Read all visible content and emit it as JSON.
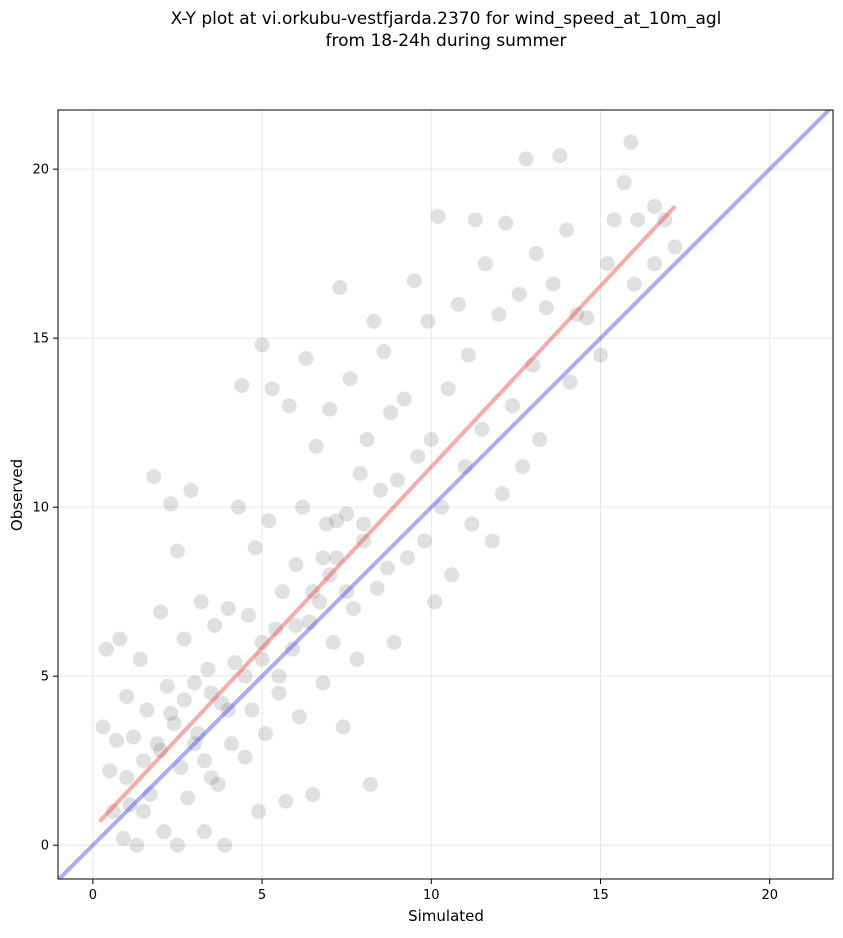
{
  "chart_data": {
    "type": "scatter",
    "title": [
      "X-Y plot at vi.orkubu-vestfjarda.2370 for wind_speed_at_10m_agl",
      "from 18-24h during summer"
    ],
    "xlabel": "Simulated",
    "ylabel": "Observed",
    "xlim": [
      -1.03,
      21.87
    ],
    "ylim": [
      -1.0,
      21.75
    ],
    "xticks": [
      0,
      5,
      10,
      15,
      20
    ],
    "yticks": [
      0,
      5,
      10,
      15,
      20
    ],
    "grid": true,
    "points": {
      "color": "#555555",
      "x": [
        0.3,
        0.4,
        0.5,
        0.6,
        0.7,
        0.8,
        0.9,
        1.0,
        1.0,
        1.1,
        1.2,
        1.3,
        1.4,
        1.5,
        1.6,
        1.7,
        1.8,
        1.9,
        2.0,
        2.1,
        2.2,
        2.3,
        2.4,
        2.5,
        2.5,
        2.6,
        2.7,
        2.8,
        2.9,
        3.0,
        3.1,
        3.2,
        3.3,
        3.4,
        3.5,
        3.6,
        3.7,
        3.8,
        3.9,
        4.0,
        4.1,
        4.2,
        4.3,
        4.4,
        4.5,
        4.6,
        4.7,
        4.8,
        4.9,
        5.0,
        5.0,
        5.1,
        5.2,
        5.3,
        5.4,
        5.5,
        5.6,
        5.7,
        5.8,
        5.9,
        6.0,
        6.1,
        6.2,
        6.3,
        6.4,
        6.5,
        6.6,
        6.7,
        6.8,
        6.9,
        7.0,
        7.1,
        7.2,
        7.3,
        7.4,
        7.5,
        7.6,
        7.7,
        7.8,
        7.9,
        8.0,
        8.1,
        8.2,
        8.3,
        8.4,
        8.5,
        8.6,
        8.7,
        8.8,
        8.9,
        9.0,
        9.2,
        9.3,
        9.5,
        9.6,
        9.8,
        9.9,
        10.0,
        10.1,
        10.2,
        10.3,
        10.5,
        10.6,
        10.8,
        11.0,
        11.1,
        11.2,
        11.3,
        11.5,
        11.6,
        11.8,
        12.0,
        12.1,
        12.2,
        12.4,
        12.6,
        12.7,
        12.8,
        13.0,
        13.1,
        13.2,
        13.4,
        13.6,
        13.8,
        14.0,
        14.1,
        14.3,
        14.6,
        15.0,
        15.2,
        15.4,
        15.7,
        15.9,
        16.1,
        16.6,
        16.9,
        17.2,
        16.0,
        16.6,
        2.0,
        2.3,
        3.0,
        3.5,
        4.0,
        4.5,
        5.0,
        5.5,
        6.0,
        6.5,
        7.0,
        7.5,
        8.0,
        6.8,
        7.2,
        3.3,
        1.5,
        2.7
      ],
      "y": [
        3.5,
        5.8,
        2.2,
        1.0,
        3.1,
        6.1,
        0.2,
        4.4,
        2.0,
        1.2,
        3.2,
        0.0,
        5.5,
        2.5,
        4.0,
        1.5,
        10.9,
        3.0,
        6.9,
        0.4,
        4.7,
        10.1,
        3.6,
        8.7,
        0.0,
        2.3,
        6.1,
        1.4,
        10.5,
        4.8,
        3.3,
        7.2,
        0.4,
        5.2,
        2.0,
        6.5,
        1.8,
        4.2,
        0.0,
        7.0,
        3.0,
        5.4,
        10.0,
        13.6,
        2.6,
        6.8,
        4.0,
        8.8,
        1.0,
        5.5,
        14.8,
        3.3,
        9.6,
        13.5,
        6.4,
        4.5,
        7.5,
        1.3,
        13.0,
        5.8,
        8.3,
        3.8,
        10.0,
        14.4,
        6.6,
        1.5,
        11.8,
        7.2,
        4.8,
        9.5,
        12.9,
        6.0,
        8.5,
        16.5,
        3.5,
        9.8,
        13.8,
        7.0,
        5.5,
        11.0,
        9.0,
        12.0,
        1.8,
        15.5,
        7.6,
        10.5,
        14.6,
        8.2,
        12.8,
        6.0,
        10.8,
        13.2,
        8.5,
        16.7,
        11.5,
        9.0,
        15.5,
        12.0,
        7.2,
        18.6,
        10.0,
        13.5,
        8.0,
        16.0,
        11.2,
        14.5,
        9.5,
        18.5,
        12.3,
        17.2,
        9.0,
        15.7,
        10.4,
        18.4,
        13.0,
        16.3,
        11.2,
        20.3,
        14.2,
        17.5,
        12.0,
        15.9,
        16.6,
        20.4,
        18.2,
        13.7,
        15.7,
        15.6,
        14.5,
        17.2,
        18.5,
        19.6,
        20.8,
        18.5,
        18.9,
        18.5,
        17.7,
        16.6,
        17.2,
        2.8,
        3.9,
        3.0,
        4.5,
        4.0,
        5.0,
        6.0,
        5.0,
        6.5,
        7.5,
        8.0,
        7.5,
        9.5,
        8.5,
        9.6,
        2.5,
        1.0,
        4.3
      ]
    },
    "fit_line": {
      "color": "#ee4444",
      "x": [
        0.2,
        17.2
      ],
      "y": [
        0.7,
        18.9
      ]
    },
    "identity_line": {
      "color": "#4444ee",
      "x": [
        -1.03,
        21.87
      ],
      "y": [
        -1.03,
        21.87
      ]
    }
  }
}
